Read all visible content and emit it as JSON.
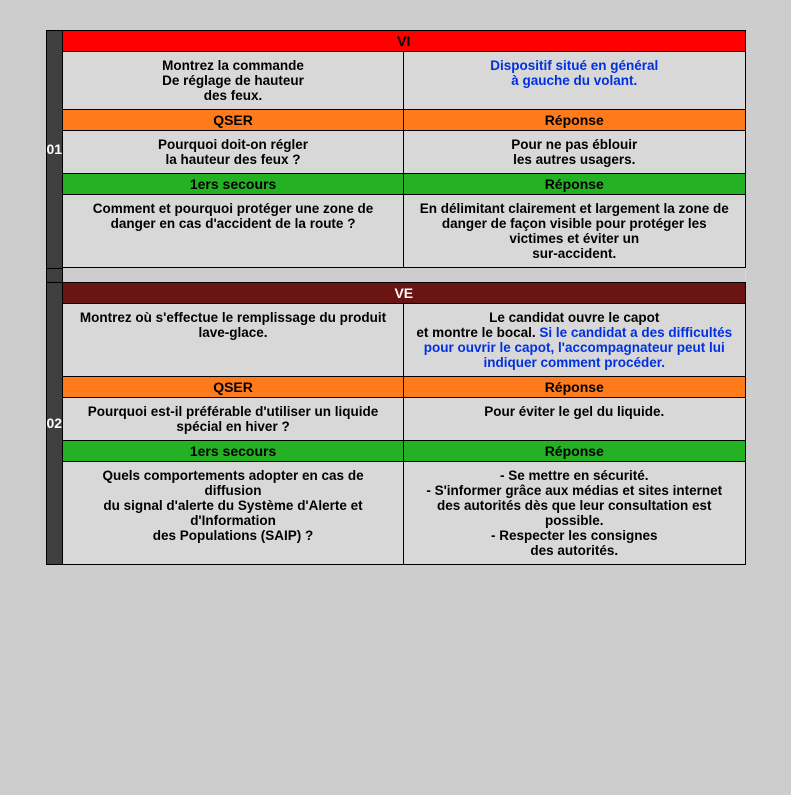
{
  "colors": {
    "page_bg": "#cdcdcd",
    "table_bg": "#d8d8d8",
    "num_bg": "#3f3f3f",
    "hdr_red": "#ff0000",
    "hdr_darkred": "#6a1414",
    "hdr_orange": "#ff7a1a",
    "hdr_green": "#24b224",
    "blue_text": "#0030e0"
  },
  "blocks": [
    {
      "num": "01",
      "cat_label": "VI",
      "cat_style": "hdr-red",
      "row1_q": "Montrez la commande\nDe réglage de hauteur\ndes feux.",
      "row1_a": "Dispositif situé en général\nà gauche du volant.",
      "row1_a_blue": true,
      "qser_label": "QSER",
      "qser_resp_label": "Réponse",
      "qser_q": "Pourquoi doit-on régler\nla hauteur des feux ?",
      "qser_a": "Pour ne pas éblouir\nles autres usagers.",
      "sec_label": "1ers secours",
      "sec_resp_label": "Réponse",
      "sec_q": "Comment et pourquoi protéger une zone de danger en cas d'accident de la route ?",
      "sec_a": "En délimitant clairement et largement la zone de danger de façon visible pour protéger les victimes et éviter un\nsur-accident."
    },
    {
      "num": "02",
      "cat_label": "VE",
      "cat_style": "hdr-darkred",
      "row1_q": "Montrez où s'effectue le remplissage du produit lave-glace.",
      "row1_a_plain": "Le candidat ouvre le capot\net montre le bocal. ",
      "row1_a_blue_tail": "Si le candidat a des difficultés pour ouvrir le capot, l'accompagnateur peut lui indiquer comment procéder.",
      "qser_label": "QSER",
      "qser_resp_label": "Réponse",
      "qser_q": "Pourquoi est-il préférable d'utiliser un liquide\nspécial en hiver ?",
      "qser_a": "Pour éviter le gel du liquide.",
      "sec_label": "1ers secours",
      "sec_resp_label": "Réponse",
      "sec_q": "Quels comportements adopter en cas de diffusion\ndu signal d'alerte du Système d'Alerte et d'Information\ndes Populations (SAIP) ?",
      "sec_a": "- Se mettre en sécurité.\n- S'informer grâce aux médias et sites internet des autorités dès que leur consultation est possible.\n- Respecter les consignes\ndes autorités."
    }
  ]
}
